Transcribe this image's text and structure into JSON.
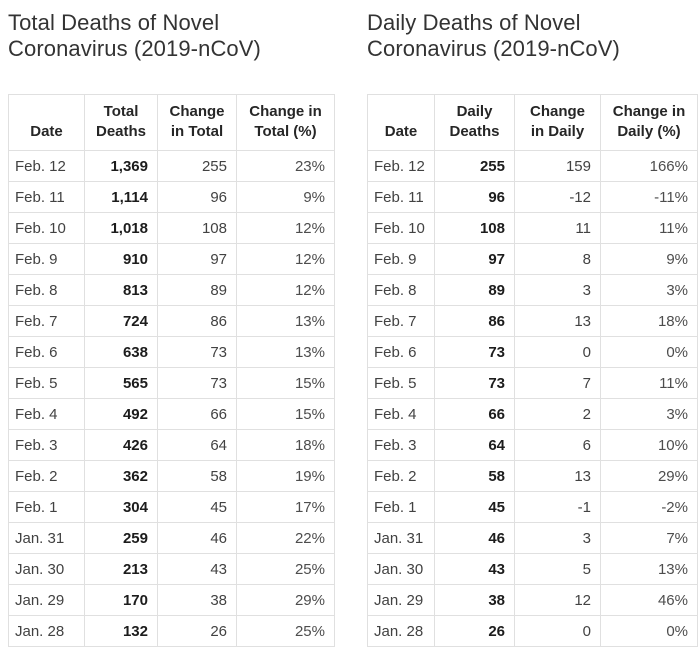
{
  "colors": {
    "background": "#ffffff",
    "border": "#e0e0e0",
    "title_text": "#333333",
    "body_text": "#424242",
    "bold_value_text": "#1c1c1c",
    "header_text": "#262626"
  },
  "chart_data": [
    {
      "type": "table",
      "title": "Total Deaths of Novel Coronavirus (2019-nCoV)",
      "columns": [
        "Date",
        "Total\nDeaths",
        "Change\nin Total",
        "Change in\nTotal (%)"
      ],
      "rows": [
        [
          "Feb. 12",
          "1,369",
          "255",
          "23%"
        ],
        [
          "Feb. 11",
          "1,114",
          "96",
          "9%"
        ],
        [
          "Feb. 10",
          "1,018",
          "108",
          "12%"
        ],
        [
          "Feb. 9",
          "910",
          "97",
          "12%"
        ],
        [
          "Feb. 8",
          "813",
          "89",
          "12%"
        ],
        [
          "Feb. 7",
          "724",
          "86",
          "13%"
        ],
        [
          "Feb. 6",
          "638",
          "73",
          "13%"
        ],
        [
          "Feb. 5",
          "565",
          "73",
          "15%"
        ],
        [
          "Feb. 4",
          "492",
          "66",
          "15%"
        ],
        [
          "Feb. 3",
          "426",
          "64",
          "18%"
        ],
        [
          "Feb. 2",
          "362",
          "58",
          "19%"
        ],
        [
          "Feb. 1",
          "304",
          "45",
          "17%"
        ],
        [
          "Jan. 31",
          "259",
          "46",
          "22%"
        ],
        [
          "Jan. 30",
          "213",
          "43",
          "25%"
        ],
        [
          "Jan. 29",
          "170",
          "38",
          "29%"
        ],
        [
          "Jan. 28",
          "132",
          "26",
          "25%"
        ]
      ]
    },
    {
      "type": "table",
      "title": "Daily Deaths of Novel Coronavirus (2019-nCoV)",
      "columns": [
        "Date",
        "Daily\nDeaths",
        "Change\nin Daily",
        "Change in\nDaily (%)"
      ],
      "rows": [
        [
          "Feb. 12",
          "255",
          "159",
          "166%"
        ],
        [
          "Feb. 11",
          "96",
          "-12",
          "-11%"
        ],
        [
          "Feb. 10",
          "108",
          "11",
          "11%"
        ],
        [
          "Feb. 9",
          "97",
          "8",
          "9%"
        ],
        [
          "Feb. 8",
          "89",
          "3",
          "3%"
        ],
        [
          "Feb. 7",
          "86",
          "13",
          "18%"
        ],
        [
          "Feb. 6",
          "73",
          "0",
          "0%"
        ],
        [
          "Feb. 5",
          "73",
          "7",
          "11%"
        ],
        [
          "Feb. 4",
          "66",
          "2",
          "3%"
        ],
        [
          "Feb. 3",
          "64",
          "6",
          "10%"
        ],
        [
          "Feb. 2",
          "58",
          "13",
          "29%"
        ],
        [
          "Feb. 1",
          "45",
          "-1",
          "-2%"
        ],
        [
          "Jan. 31",
          "46",
          "3",
          "7%"
        ],
        [
          "Jan. 30",
          "43",
          "5",
          "13%"
        ],
        [
          "Jan. 29",
          "38",
          "12",
          "46%"
        ],
        [
          "Jan. 28",
          "26",
          "0",
          "0%"
        ]
      ]
    }
  ]
}
